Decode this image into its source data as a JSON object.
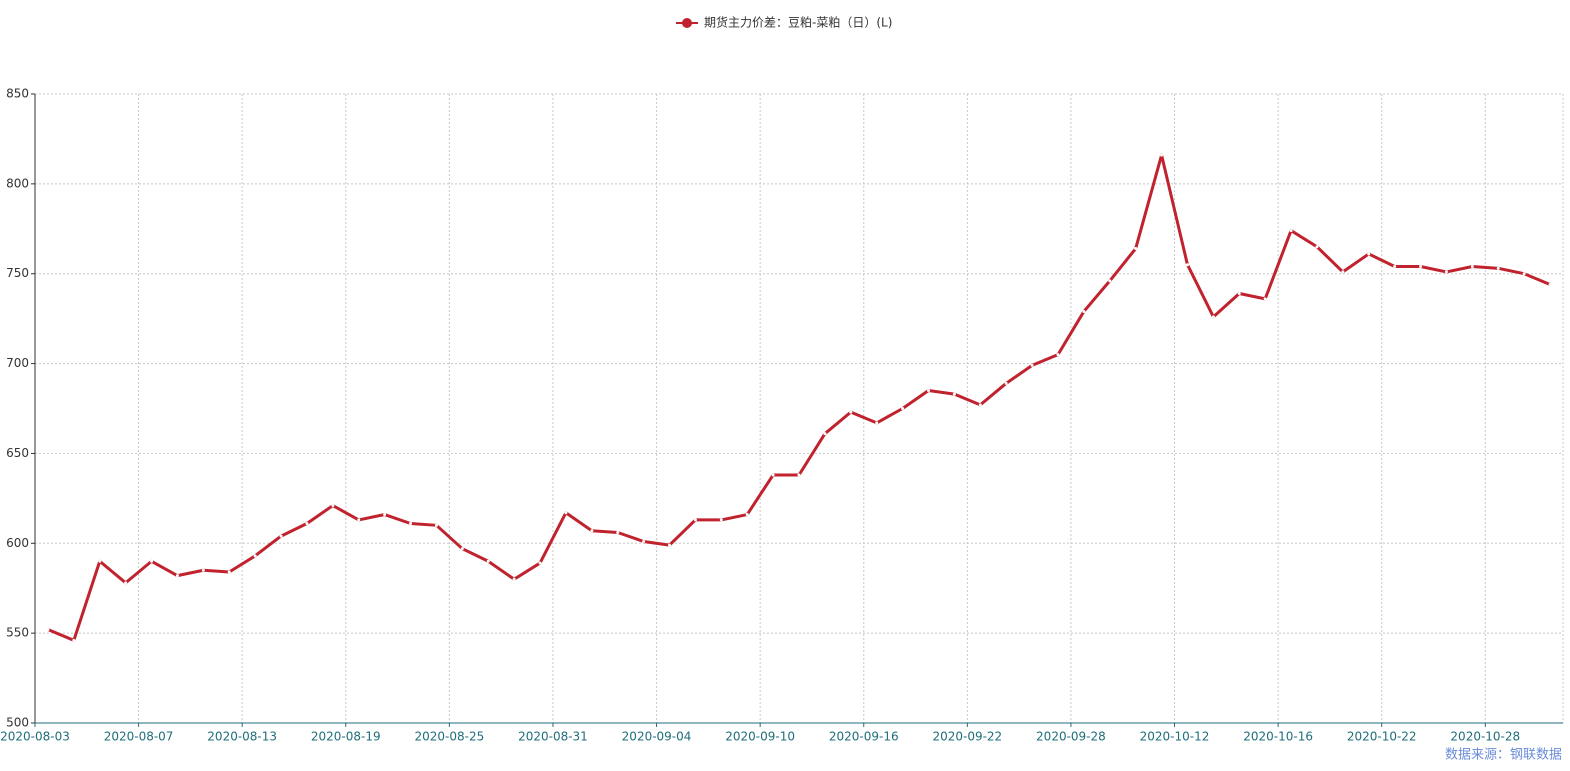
{
  "chart_data": {
    "type": "line",
    "legend": "期货主力价差：豆粕-菜粕（日）(L)",
    "source": "数据来源：钢联数据",
    "categories": [
      "2020-08-03",
      null,
      null,
      null,
      "2020-08-07",
      null,
      null,
      null,
      "2020-08-13",
      null,
      null,
      null,
      "2020-08-19",
      null,
      null,
      null,
      "2020-08-25",
      null,
      null,
      null,
      "2020-08-31",
      null,
      null,
      null,
      "2020-09-04",
      null,
      null,
      null,
      "2020-09-10",
      null,
      null,
      null,
      "2020-09-16",
      null,
      null,
      null,
      "2020-09-22",
      null,
      null,
      null,
      "2020-09-28",
      null,
      null,
      null,
      "2020-10-12",
      null,
      null,
      null,
      "2020-10-16",
      null,
      null,
      null,
      "2020-10-22",
      null,
      null,
      null,
      "2020-10-28",
      null,
      null
    ],
    "series": [
      {
        "name": "期货主力价差：豆粕-菜粕（日）(L)",
        "color": "#c0222e",
        "values": [
          552,
          546,
          590,
          578,
          590,
          582,
          585,
          584,
          593,
          604,
          611,
          621,
          613,
          616,
          611,
          610,
          597,
          590,
          580,
          589,
          617,
          607,
          606,
          601,
          599,
          613,
          613,
          616,
          638,
          638,
          661,
          673,
          667,
          675,
          685,
          683,
          677,
          689,
          699,
          705,
          729,
          746,
          764,
          816,
          755,
          726,
          739,
          736,
          774,
          765,
          751,
          761,
          754,
          754,
          751,
          754,
          753,
          750,
          744
        ]
      }
    ],
    "ylim": [
      500,
      850
    ],
    "yticks": [
      500,
      550,
      600,
      650,
      700,
      750,
      800,
      850
    ],
    "grid": true
  }
}
